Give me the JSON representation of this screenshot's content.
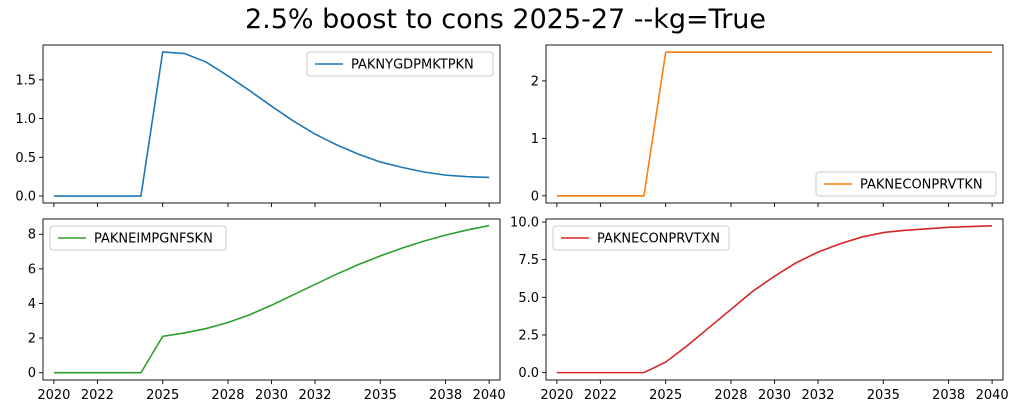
{
  "figure": {
    "title": "2.5% boost to cons 2025-27 --kg=True"
  },
  "chart_data": [
    {
      "type": "line",
      "title": "",
      "xlabel": "",
      "ylabel": "",
      "xlim": [
        2019.5,
        2040.5
      ],
      "ylim": [
        -0.09,
        1.95
      ],
      "xticks": [
        2020,
        2022,
        2025,
        2028,
        2030,
        2032,
        2035,
        2038,
        2040
      ],
      "show_xtick_labels": false,
      "yticks": [
        0.0,
        0.5,
        1.0,
        1.5
      ],
      "ytick_labels": [
        "0.0",
        "0.5",
        "1.0",
        "1.5"
      ],
      "grid": false,
      "legend_placement": "top-right",
      "series": [
        {
          "name": "PAKNYGDPMKTPKN",
          "color": "#1f77b4",
          "x": [
            2020,
            2021,
            2022,
            2023,
            2024,
            2025,
            2026,
            2027,
            2028,
            2029,
            2030,
            2031,
            2032,
            2033,
            2034,
            2035,
            2036,
            2037,
            2038,
            2039,
            2040
          ],
          "y": [
            0.0,
            0.0,
            0.0,
            0.0,
            0.0,
            1.86,
            1.84,
            1.73,
            1.55,
            1.36,
            1.16,
            0.97,
            0.8,
            0.66,
            0.54,
            0.44,
            0.37,
            0.31,
            0.27,
            0.25,
            0.24
          ]
        }
      ]
    },
    {
      "type": "line",
      "title": "",
      "xlabel": "",
      "ylabel": "",
      "xlim": [
        2019.5,
        2040.5
      ],
      "ylim": [
        -0.125,
        2.625
      ],
      "xticks": [
        2020,
        2022,
        2025,
        2028,
        2030,
        2032,
        2035,
        2038,
        2040
      ],
      "show_xtick_labels": false,
      "yticks": [
        0,
        1,
        2
      ],
      "ytick_labels": [
        "0",
        "1",
        "2"
      ],
      "grid": false,
      "legend_placement": "bottom-right",
      "series": [
        {
          "name": "PAKNECONPRVTKN",
          "color": "#ff7f0e",
          "x": [
            2020,
            2021,
            2022,
            2023,
            2024,
            2025,
            2026,
            2027,
            2028,
            2029,
            2030,
            2031,
            2032,
            2033,
            2034,
            2035,
            2036,
            2037,
            2038,
            2039,
            2040
          ],
          "y": [
            0,
            0,
            0,
            0,
            0,
            2.5,
            2.5,
            2.5,
            2.5,
            2.5,
            2.5,
            2.5,
            2.5,
            2.5,
            2.5,
            2.5,
            2.5,
            2.5,
            2.5,
            2.5,
            2.5
          ]
        }
      ]
    },
    {
      "type": "line",
      "title": "",
      "xlabel": "",
      "ylabel": "",
      "xlim": [
        2019.5,
        2040.5
      ],
      "ylim": [
        -0.42,
        8.88
      ],
      "xticks": [
        2020,
        2022,
        2025,
        2028,
        2030,
        2032,
        2035,
        2038,
        2040
      ],
      "xtick_labels": [
        "2020",
        "2022",
        "2025",
        "2028",
        "2030",
        "2032",
        "2035",
        "2038",
        "2040"
      ],
      "show_xtick_labels": true,
      "yticks": [
        0,
        2,
        4,
        6,
        8
      ],
      "ytick_labels": [
        "0",
        "2",
        "4",
        "6",
        "8"
      ],
      "grid": false,
      "legend_placement": "top-left",
      "series": [
        {
          "name": "PAKNEIMPGNFSKN",
          "color": "#2ca02c",
          "x": [
            2020,
            2021,
            2022,
            2023,
            2024,
            2025,
            2026,
            2027,
            2028,
            2029,
            2030,
            2031,
            2032,
            2033,
            2034,
            2035,
            2036,
            2037,
            2038,
            2039,
            2040
          ],
          "y": [
            0,
            0,
            0,
            0,
            0,
            2.1,
            2.3,
            2.55,
            2.9,
            3.35,
            3.9,
            4.5,
            5.1,
            5.7,
            6.25,
            6.75,
            7.2,
            7.6,
            7.95,
            8.25,
            8.5
          ]
        }
      ]
    },
    {
      "type": "line",
      "title": "",
      "xlabel": "",
      "ylabel": "",
      "xlim": [
        2019.5,
        2040.5
      ],
      "ylim": [
        -0.49,
        10.2
      ],
      "xticks": [
        2020,
        2022,
        2025,
        2028,
        2030,
        2032,
        2035,
        2038,
        2040
      ],
      "xtick_labels": [
        "2020",
        "2022",
        "2025",
        "2028",
        "2030",
        "2032",
        "2035",
        "2038",
        "2040"
      ],
      "show_xtick_labels": true,
      "yticks": [
        0.0,
        2.5,
        5.0,
        7.5,
        10.0
      ],
      "ytick_labels": [
        "0.0",
        "2.5",
        "5.0",
        "7.5",
        "10.0"
      ],
      "grid": false,
      "legend_placement": "top-left",
      "series": [
        {
          "name": "PAKNECONPRVTXN",
          "color": "#d62728",
          "x": [
            2020,
            2021,
            2022,
            2023,
            2024,
            2025,
            2026,
            2027,
            2028,
            2029,
            2030,
            2031,
            2032,
            2033,
            2034,
            2035,
            2036,
            2037,
            2038,
            2039,
            2040
          ],
          "y": [
            0,
            0,
            0,
            0,
            0,
            0.7,
            1.8,
            3.0,
            4.2,
            5.4,
            6.4,
            7.3,
            8.0,
            8.55,
            9.0,
            9.3,
            9.45,
            9.55,
            9.65,
            9.7,
            9.75
          ]
        }
      ]
    }
  ]
}
